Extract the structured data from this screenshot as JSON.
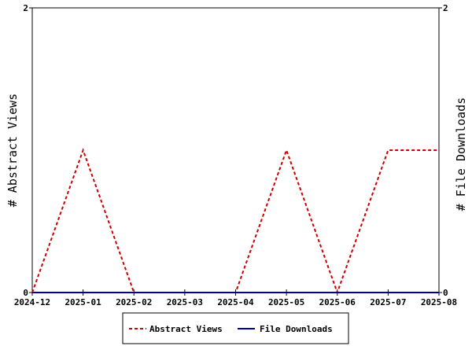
{
  "chart_data": {
    "type": "line",
    "x": [
      "2024-12",
      "2025-01",
      "2025-02",
      "2025-03",
      "2025-04",
      "2025-05",
      "2025-06",
      "2025-07",
      "2025-08"
    ],
    "series": [
      {
        "name": "Abstract Views",
        "axis": "left",
        "color": "#cc0000",
        "dash": "dashed",
        "values": [
          0,
          1,
          0,
          0,
          0,
          1,
          0,
          1,
          1
        ]
      },
      {
        "name": "File Downloads",
        "axis": "right",
        "color": "#000099",
        "dash": "solid",
        "values": [
          0,
          0,
          0,
          0,
          0,
          0,
          0,
          0,
          0
        ]
      }
    ],
    "ylabel_left": "# Abstract Views",
    "ylabel_right": "# File Downloads",
    "ylim_left": [
      0,
      2
    ],
    "ylim_right": [
      0,
      2
    ],
    "yticks_left": [
      "0",
      "2"
    ],
    "yticks_right": [
      "0",
      "2"
    ],
    "legend_position": "bottom",
    "grid": false
  }
}
